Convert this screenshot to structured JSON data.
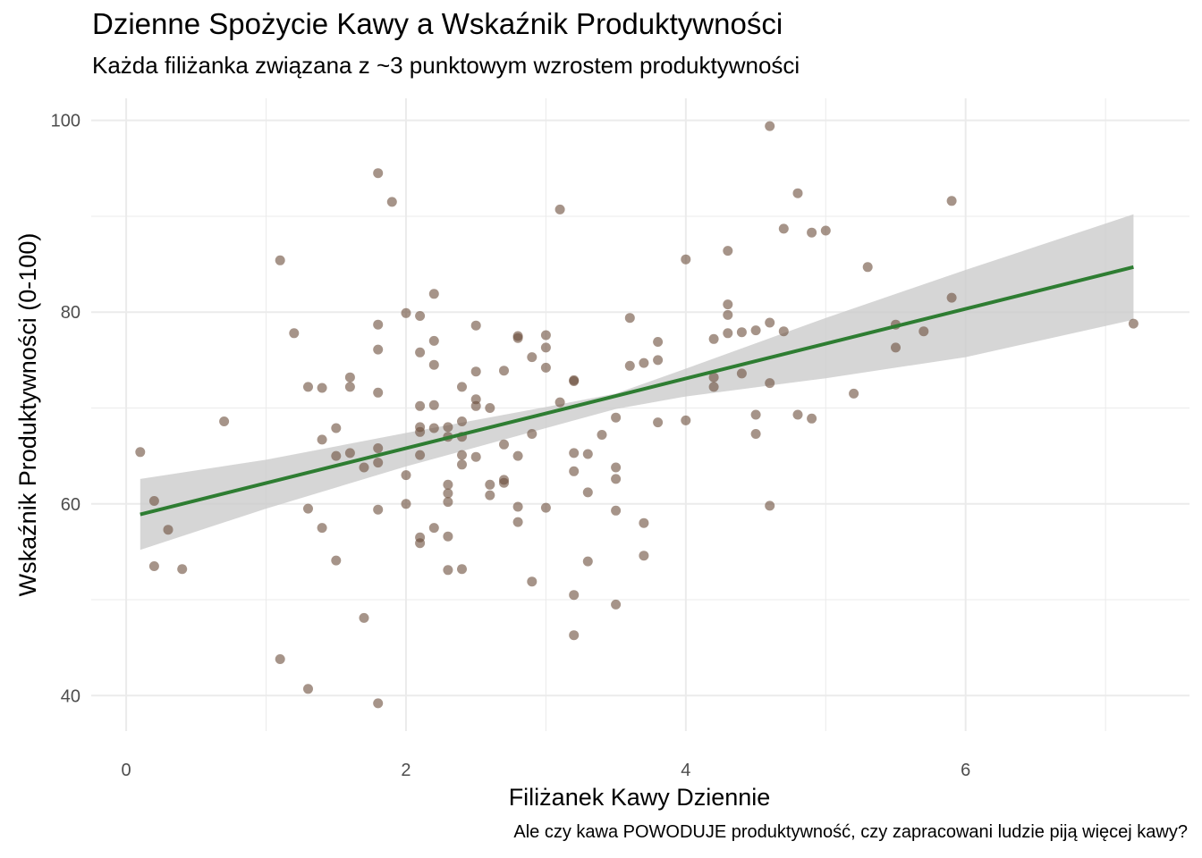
{
  "chart_data": {
    "type": "scatter",
    "title": "Dzienne Spożycie Kawy a Wskaźnik Produktywności",
    "subtitle": "Każda filiżanka związana z ~3 punktowym wzrostem produktywności",
    "caption": "Ale czy kawa POWODUJE produktywność, czy zapracowani ludzie piją więcej kawy?",
    "xlabel": "Filiżanek Kawy Dziennie",
    "ylabel": "Wskaźnik Produktywności (0-100)",
    "xlim": [
      -0.25,
      7.6
    ],
    "ylim": [
      36.3,
      102.3
    ],
    "x_ticks": [
      0,
      2,
      4,
      6
    ],
    "y_ticks": [
      40,
      60,
      80,
      100
    ],
    "grid": true,
    "legend": "none",
    "colors": {
      "points": "#6b4c3b",
      "trend": "#2e7d32",
      "band": "#cccccc",
      "grid": "#ebebeb"
    },
    "points": [
      [
        0.1,
        65.4
      ],
      [
        0.2,
        60.3
      ],
      [
        0.2,
        53.5
      ],
      [
        0.3,
        57.3
      ],
      [
        0.4,
        53.2
      ],
      [
        0.7,
        68.6
      ],
      [
        1.1,
        85.4
      ],
      [
        1.1,
        43.8
      ],
      [
        1.2,
        77.8
      ],
      [
        1.3,
        72.2
      ],
      [
        1.3,
        59.5
      ],
      [
        1.3,
        40.7
      ],
      [
        1.4,
        72.1
      ],
      [
        1.4,
        66.7
      ],
      [
        1.4,
        57.5
      ],
      [
        1.5,
        67.9
      ],
      [
        1.5,
        65.0
      ],
      [
        1.5,
        54.1
      ],
      [
        1.6,
        73.2
      ],
      [
        1.6,
        72.2
      ],
      [
        1.6,
        65.3
      ],
      [
        1.7,
        63.8
      ],
      [
        1.7,
        48.1
      ],
      [
        1.8,
        94.5
      ],
      [
        1.8,
        78.7
      ],
      [
        1.8,
        76.1
      ],
      [
        1.8,
        71.6
      ],
      [
        1.8,
        65.8
      ],
      [
        1.8,
        64.3
      ],
      [
        1.8,
        59.4
      ],
      [
        1.8,
        39.2
      ],
      [
        1.9,
        91.5
      ],
      [
        2.0,
        79.9
      ],
      [
        2.0,
        63.0
      ],
      [
        2.0,
        60.0
      ],
      [
        2.1,
        79.6
      ],
      [
        2.1,
        75.8
      ],
      [
        2.1,
        70.2
      ],
      [
        2.1,
        68.0
      ],
      [
        2.1,
        67.5
      ],
      [
        2.1,
        65.1
      ],
      [
        2.1,
        56.5
      ],
      [
        2.1,
        55.9
      ],
      [
        2.2,
        81.9
      ],
      [
        2.2,
        77.0
      ],
      [
        2.2,
        74.5
      ],
      [
        2.2,
        70.3
      ],
      [
        2.2,
        67.9
      ],
      [
        2.2,
        57.5
      ],
      [
        2.3,
        68.0
      ],
      [
        2.3,
        67.0
      ],
      [
        2.3,
        62.0
      ],
      [
        2.3,
        61.1
      ],
      [
        2.3,
        60.2
      ],
      [
        2.3,
        56.6
      ],
      [
        2.3,
        53.1
      ],
      [
        2.4,
        72.2
      ],
      [
        2.4,
        68.6
      ],
      [
        2.4,
        67.0
      ],
      [
        2.4,
        65.1
      ],
      [
        2.4,
        64.1
      ],
      [
        2.4,
        53.2
      ],
      [
        2.5,
        78.6
      ],
      [
        2.5,
        73.8
      ],
      [
        2.5,
        70.9
      ],
      [
        2.5,
        70.2
      ],
      [
        2.5,
        64.9
      ],
      [
        2.6,
        70.0
      ],
      [
        2.6,
        62.0
      ],
      [
        2.6,
        60.9
      ],
      [
        2.7,
        73.9
      ],
      [
        2.7,
        66.2
      ],
      [
        2.7,
        62.5
      ],
      [
        2.7,
        62.2
      ],
      [
        2.8,
        77.5
      ],
      [
        2.8,
        77.3
      ],
      [
        2.8,
        65.0
      ],
      [
        2.8,
        59.7
      ],
      [
        2.8,
        58.1
      ],
      [
        2.9,
        75.3
      ],
      [
        2.9,
        67.3
      ],
      [
        2.9,
        51.9
      ],
      [
        3.0,
        77.6
      ],
      [
        3.0,
        76.3
      ],
      [
        3.0,
        74.2
      ],
      [
        3.0,
        59.6
      ],
      [
        3.1,
        90.7
      ],
      [
        3.1,
        70.6
      ],
      [
        3.2,
        72.9
      ],
      [
        3.2,
        72.8
      ],
      [
        3.2,
        65.3
      ],
      [
        3.2,
        63.4
      ],
      [
        3.2,
        50.5
      ],
      [
        3.2,
        46.3
      ],
      [
        3.3,
        65.2
      ],
      [
        3.3,
        61.2
      ],
      [
        3.3,
        54.0
      ],
      [
        3.4,
        67.2
      ],
      [
        3.5,
        69.0
      ],
      [
        3.5,
        63.8
      ],
      [
        3.5,
        62.6
      ],
      [
        3.5,
        59.3
      ],
      [
        3.5,
        49.5
      ],
      [
        3.6,
        79.4
      ],
      [
        3.6,
        74.4
      ],
      [
        3.7,
        74.7
      ],
      [
        3.7,
        58.0
      ],
      [
        3.7,
        54.6
      ],
      [
        3.8,
        76.9
      ],
      [
        3.8,
        75.0
      ],
      [
        3.8,
        68.5
      ],
      [
        4.0,
        85.5
      ],
      [
        4.0,
        68.7
      ],
      [
        4.2,
        77.2
      ],
      [
        4.2,
        73.2
      ],
      [
        4.2,
        72.2
      ],
      [
        4.3,
        86.4
      ],
      [
        4.3,
        80.8
      ],
      [
        4.3,
        79.7
      ],
      [
        4.3,
        77.8
      ],
      [
        4.4,
        77.9
      ],
      [
        4.4,
        73.6
      ],
      [
        4.5,
        78.1
      ],
      [
        4.5,
        69.3
      ],
      [
        4.5,
        67.3
      ],
      [
        4.6,
        99.4
      ],
      [
        4.6,
        78.9
      ],
      [
        4.6,
        72.6
      ],
      [
        4.6,
        59.8
      ],
      [
        4.7,
        88.7
      ],
      [
        4.7,
        78.0
      ],
      [
        4.8,
        92.4
      ],
      [
        4.8,
        69.3
      ],
      [
        4.9,
        88.3
      ],
      [
        4.9,
        68.9
      ],
      [
        5.0,
        88.5
      ],
      [
        5.2,
        71.5
      ],
      [
        5.3,
        84.7
      ],
      [
        5.5,
        78.7
      ],
      [
        5.5,
        76.3
      ],
      [
        5.7,
        78.0
      ],
      [
        5.9,
        91.6
      ],
      [
        5.9,
        81.5
      ],
      [
        7.2,
        78.8
      ]
    ],
    "trend_line": {
      "x": [
        0.1,
        7.2
      ],
      "y": [
        58.9,
        84.7
      ]
    },
    "confidence_band": {
      "x": [
        0.1,
        1.0,
        2.0,
        3.0,
        3.5,
        4.0,
        5.0,
        6.0,
        7.2
      ],
      "lower": [
        55.2,
        59.5,
        63.9,
        67.9,
        69.9,
        71.2,
        73.1,
        75.3,
        79.2
      ],
      "upper": [
        62.6,
        64.6,
        67.4,
        70.1,
        71.5,
        74.1,
        79.4,
        84.4,
        90.2
      ]
    }
  }
}
